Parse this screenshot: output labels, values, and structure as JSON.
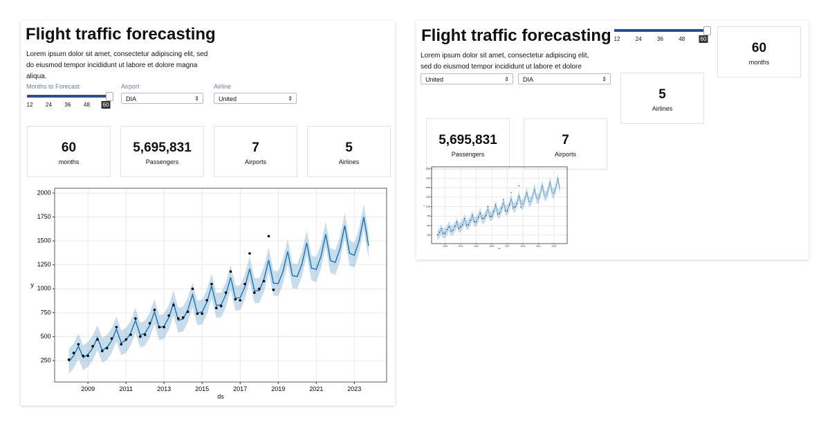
{
  "title": "Flight traffic forecasting",
  "description": "Lorem ipsum dolor sit amet, consectetur adipiscing elit, sed do eiusmod tempor incididunt ut labore et dolore magna aliqua.",
  "controls": {
    "months_label": "Months to Forecast",
    "months_ticks": [
      12,
      24,
      36,
      48,
      60
    ],
    "months_value": 60,
    "airport_label": "Airport",
    "airport": "DIA",
    "airline_label": "Airline",
    "airline": "United"
  },
  "stats": [
    {
      "value": 60,
      "label": "months"
    },
    {
      "value": "5,695,831",
      "label": "Passengers"
    },
    {
      "value": 7,
      "label": "Airports"
    },
    {
      "value": 5,
      "label": "Airlines"
    }
  ],
  "chart_data": {
    "type": "line",
    "x_label": "ds",
    "y_label": "y",
    "grid": true,
    "xlim": [
      2007.25,
      2024.7
    ],
    "xticks": [
      2009,
      2011,
      2013,
      2015,
      2017,
      2019,
      2021,
      2023
    ],
    "ylim": [
      26,
      2051
    ],
    "yticks": [
      250,
      500,
      750,
      1000,
      1250,
      1500,
      1750,
      2000
    ],
    "forecast": {
      "color": "#1f77b4",
      "x": [
        2008,
        2008.25,
        2008.5,
        2008.75,
        2009,
        2009.25,
        2009.5,
        2009.75,
        2010,
        2010.25,
        2010.5,
        2010.75,
        2011,
        2011.25,
        2011.5,
        2011.75,
        2012,
        2012.25,
        2012.5,
        2012.75,
        2013,
        2013.25,
        2013.5,
        2013.75,
        2014,
        2014.25,
        2014.5,
        2014.75,
        2015,
        2015.25,
        2015.5,
        2015.75,
        2016,
        2016.25,
        2016.5,
        2016.75,
        2017,
        2017.25,
        2017.5,
        2017.75,
        2018,
        2018.25,
        2018.5,
        2018.75,
        2019,
        2019.25,
        2019.5,
        2019.75,
        2020,
        2020.25,
        2020.5,
        2020.75,
        2021,
        2021.25,
        2021.5,
        2021.75,
        2022,
        2022.25,
        2022.5,
        2022.75,
        2023,
        2023.25,
        2023.5,
        2023.75
      ],
      "values": [
        240,
        300,
        400,
        280,
        314,
        380,
        490,
        358,
        388,
        460,
        580,
        436,
        462,
        540,
        670,
        514,
        536,
        620,
        760,
        592,
        610,
        700,
        850,
        670,
        684,
        780,
        940,
        748,
        758,
        860,
        1030,
        826,
        832,
        940,
        1120,
        904,
        906,
        1020,
        1210,
        982,
        980,
        1100,
        1300,
        1060,
        1054,
        1180,
        1390,
        1138,
        1128,
        1260,
        1480,
        1216,
        1202,
        1340,
        1570,
        1294,
        1276,
        1420,
        1660,
        1372,
        1350,
        1500,
        1750,
        1450
      ],
      "lower": [
        110,
        170,
        270,
        150,
        184,
        250,
        360,
        228,
        258,
        330,
        450,
        306,
        332,
        410,
        540,
        384,
        406,
        490,
        630,
        462,
        480,
        570,
        720,
        540,
        554,
        650,
        810,
        618,
        628,
        730,
        900,
        696,
        702,
        810,
        990,
        774,
        776,
        890,
        1080,
        852,
        850,
        970,
        1170,
        930,
        924,
        1050,
        1260,
        1008,
        998,
        1130,
        1350,
        1086,
        1072,
        1210,
        1440,
        1164,
        1146,
        1290,
        1530,
        1242,
        1220,
        1370,
        1620,
        1320
      ],
      "upper": [
        370,
        430,
        530,
        410,
        444,
        510,
        620,
        488,
        518,
        590,
        710,
        566,
        592,
        670,
        800,
        644,
        666,
        750,
        890,
        722,
        740,
        830,
        980,
        800,
        814,
        910,
        1070,
        878,
        888,
        990,
        1160,
        956,
        962,
        1070,
        1250,
        1034,
        1036,
        1150,
        1340,
        1112,
        1110,
        1230,
        1430,
        1190,
        1184,
        1310,
        1520,
        1268,
        1258,
        1390,
        1610,
        1346,
        1332,
        1470,
        1700,
        1424,
        1406,
        1550,
        1790,
        1502,
        1480,
        1630,
        1880,
        1580
      ]
    },
    "observed": {
      "color": "#000000",
      "x": [
        2008,
        2008.25,
        2008.5,
        2008.75,
        2009,
        2009.25,
        2009.5,
        2009.75,
        2010,
        2010.25,
        2010.5,
        2010.75,
        2011,
        2011.25,
        2011.5,
        2011.75,
        2012,
        2012.25,
        2012.5,
        2012.75,
        2013,
        2013.25,
        2013.5,
        2013.75,
        2014,
        2014.25,
        2014.5,
        2014.75,
        2015,
        2015.25,
        2015.5,
        2015.75,
        2016,
        2016.25,
        2016.5,
        2016.75,
        2017,
        2017.25,
        2017.5,
        2017.75,
        2018,
        2018.25,
        2018.5,
        2018.75
      ],
      "values": [
        260,
        330,
        420,
        300,
        300,
        400,
        470,
        350,
        380,
        480,
        600,
        420,
        470,
        520,
        690,
        500,
        520,
        640,
        780,
        600,
        600,
        720,
        830,
        690,
        700,
        760,
        1000,
        740,
        740,
        880,
        1050,
        800,
        820,
        960,
        1180,
        890,
        880,
        1050,
        1370,
        960,
        1000,
        1080,
        1550,
        990
      ]
    }
  }
}
